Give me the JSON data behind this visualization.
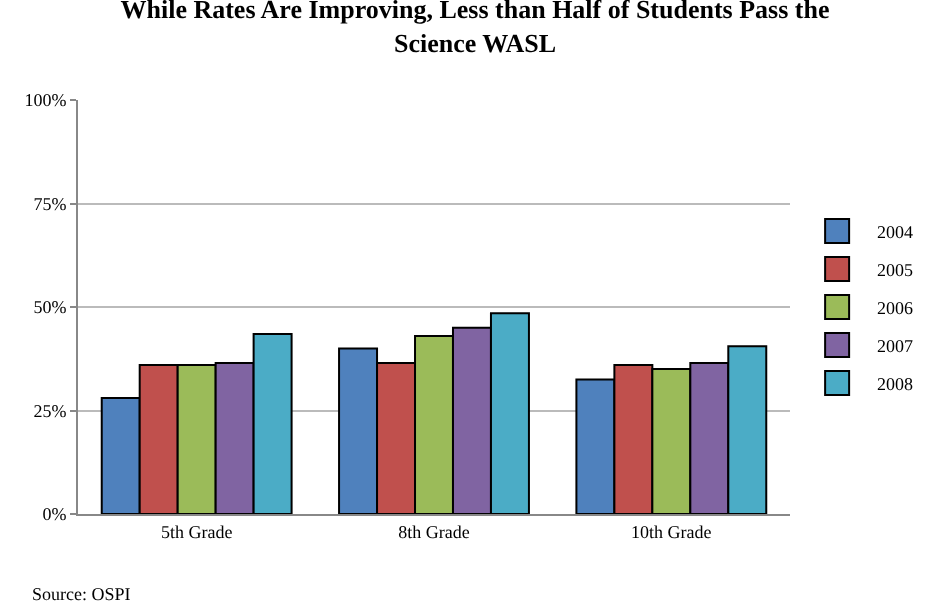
{
  "chart_data": {
    "type": "bar",
    "title": "While Rates Are Improving, Less than Half of Students Pass the Science WASL",
    "categories": [
      "5th Grade",
      "8th Grade",
      "10th Grade"
    ],
    "series": [
      {
        "name": "2004",
        "color": "#4f81bd",
        "values": [
          28,
          40,
          32.5
        ]
      },
      {
        "name": "2005",
        "color": "#c0504d",
        "values": [
          36,
          36.5,
          36
        ]
      },
      {
        "name": "2006",
        "color": "#9bbb59",
        "values": [
          36,
          43,
          35
        ]
      },
      {
        "name": "2007",
        "color": "#8064a2",
        "values": [
          36.5,
          45,
          36.5
        ]
      },
      {
        "name": "2008",
        "color": "#4bacc6",
        "values": [
          43.5,
          48.5,
          40.5
        ]
      }
    ],
    "ylim": [
      0,
      100
    ],
    "yticks": [
      {
        "value": 0,
        "label": "0%"
      },
      {
        "value": 25,
        "label": "25%"
      },
      {
        "value": 50,
        "label": "50%"
      },
      {
        "value": 75,
        "label": "75%"
      },
      {
        "value": 100,
        "label": "100%"
      }
    ],
    "grid": "y",
    "legend": "right",
    "annotations": [
      "Source: OSPI"
    ]
  }
}
